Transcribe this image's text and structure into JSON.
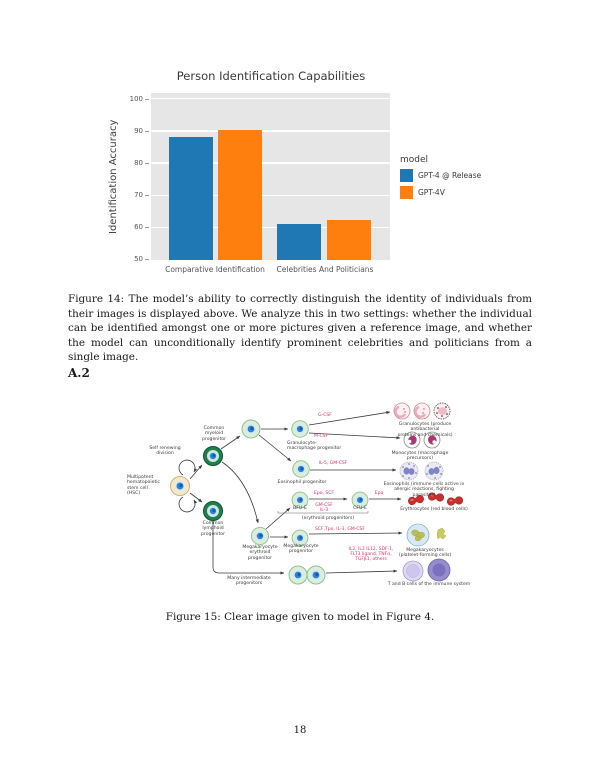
{
  "page_number": "18",
  "section_heading": "A.2",
  "chart_data": {
    "type": "bar",
    "title": "Person Identification Capabilities",
    "xlabel": "",
    "ylabel": "Identification Accuracy",
    "categories": [
      "Comparative Identification",
      "Celebrities And Politicians"
    ],
    "series": [
      {
        "name": "GPT-4 @ Release",
        "color": "#1f77b4",
        "values": [
          88.4,
          61.3
        ]
      },
      {
        "name": "GPT-4V",
        "color": "#ff7f0e",
        "values": [
          90.6,
          62.4
        ]
      }
    ],
    "ylim": [
      50,
      102
    ],
    "yticks": [
      "100",
      "90",
      "80",
      "70",
      "60",
      "50"
    ],
    "legend": {
      "title": "model",
      "position": "right"
    },
    "grid": true,
    "panel_bg": "#e6e6e6"
  },
  "figure14": {
    "caption": "Figure 14: The model’s ability to correctly distinguish the identity of individuals from their images is displayed above. We analyze this in two settings: whether the individual can be identified amongst one or more pictures given a reference image, and whether the model can unconditionally identify prominent celebrities and politicians from a single image."
  },
  "figure15": {
    "caption": "Figure 15: Clear image given to model in Figure 4.",
    "labels": {
      "self_renewing": "Self renewing\ndivision",
      "hsc": "Multipotent\nhematopoietic\nstem cell\n(HSC)",
      "cmp": "Common\nmyeloid\nprogenitor",
      "clp": "Common\nlymphoid\nprogenitor",
      "gmp": "Granulocyte-\nmacrophage progenitor",
      "eos_prog": "Eosinophil progenitor",
      "mep": "Megakaryocyte\nerythroid\nprogenitor",
      "meg_prog": "Megakaryocyte progenitor",
      "bfu": "BFU-E",
      "cfu": "CFU-E",
      "erythroid_prog": "(erythroid progenitors)",
      "many_int": "Many intermediate\nprogenitors",
      "granulocytes": "Granulocytes (produce antibacterial\nproteins and chemicals)",
      "monocytes": "Monocytes (macrophage precursors)",
      "eosinophils": "Eosinophils (immune cells active in\nallergic reactions, fighting parasites)",
      "erythrocytes": "Erythrocytes (red blood cells)",
      "megakaryocytes": "Megakaryocytes\n(platelet-forming cells)",
      "t_b": "T and B cells of the immune system",
      "g_csf": "G-CSF",
      "m_csf": "M-CSF",
      "il5_gmcsf": "IL-5, GM-CSF",
      "epo_scf": "Epo, SCF",
      "gmcsf_il3": "GM-CSF\nIL-3",
      "epo": "Epo",
      "scf_tpo": "SCF,Tpo, IL-3, GM-CSF",
      "cytokines": "IL2, IL3 IL12, SDF-1,\nFLT3 ligand, TNFα,\nTGFβ1, others"
    }
  }
}
